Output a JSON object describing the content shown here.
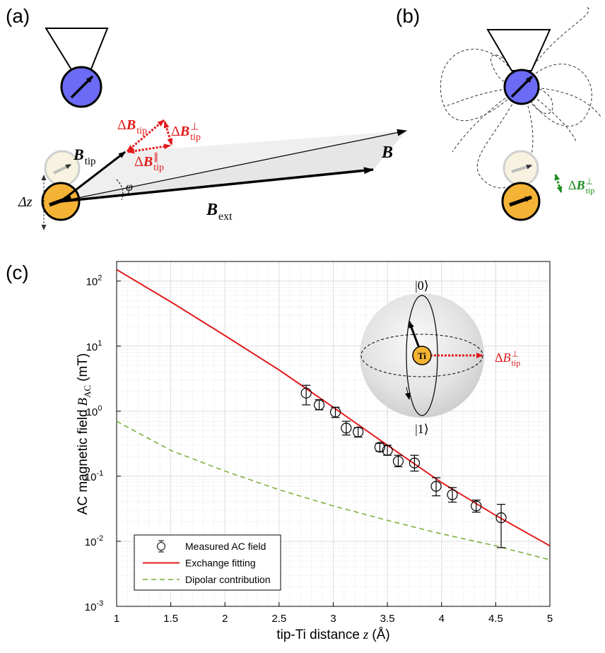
{
  "panel_labels": [
    "(a)",
    "(b)",
    "(c)"
  ],
  "panel_a": {
    "b_tip": {
      "base": "B",
      "sub": "tip"
    },
    "delta_b_tip": {
      "prefix": "Δ",
      "base": "B",
      "sub": "tip"
    },
    "delta_b_perp": {
      "prefix": "Δ",
      "base": "B",
      "sup": "⊥",
      "sub": "tip"
    },
    "delta_b_par": {
      "prefix": "Δ",
      "base": "B",
      "sup": "∥",
      "sub": "tip"
    },
    "phi": "φ",
    "delta_z": "Δz",
    "b_total": "B",
    "b_ext": {
      "base": "B",
      "sub": "ext"
    }
  },
  "panel_b": {
    "delta_b_perp": {
      "prefix": "Δ",
      "base": "B",
      "sup": "⊥",
      "sub": "tip"
    }
  },
  "chart_data": {
    "type": "errorbar-line",
    "xlabel": {
      "text": "tip-Ti distance",
      "symbol": "z",
      "unit": "(Å)"
    },
    "ylabel": {
      "text": "AC magnetic field",
      "symbol": "B",
      "sub": "AC",
      "unit": "(mT)"
    },
    "xlim": [
      1,
      5
    ],
    "xticks": [
      1,
      1.5,
      2,
      2.5,
      3,
      3.5,
      4,
      4.5,
      5
    ],
    "xminorticks": [
      1.1,
      1.2,
      1.3,
      1.4,
      1.6,
      1.7,
      1.8,
      1.9,
      2.1,
      2.2,
      2.3,
      2.4,
      2.6,
      2.7,
      2.8,
      2.9,
      3.1,
      3.2,
      3.3,
      3.4,
      3.6,
      3.7,
      3.8,
      3.9,
      4.1,
      4.2,
      4.3,
      4.4,
      4.6,
      4.7,
      4.8,
      4.9
    ],
    "yscale": "log",
    "ylim": [
      0.001,
      200
    ],
    "yticks": [
      {
        "value": 0.001,
        "label": "10",
        "exponent": "-3"
      },
      {
        "value": 0.01,
        "label": "10",
        "exponent": "-2"
      },
      {
        "value": 0.1,
        "label": "10",
        "exponent": "-1"
      },
      {
        "value": 1,
        "label": "10",
        "exponent": "0"
      },
      {
        "value": 10,
        "label": "10",
        "exponent": "1"
      },
      {
        "value": 100,
        "label": "10",
        "exponent": "2"
      }
    ],
    "yminorticks": [
      0.002,
      0.003,
      0.004,
      0.005,
      0.006,
      0.007,
      0.008,
      0.009,
      0.02,
      0.03,
      0.04,
      0.05,
      0.06,
      0.07,
      0.08,
      0.09,
      0.2,
      0.3,
      0.4,
      0.5,
      0.6,
      0.7,
      0.8,
      0.9,
      2,
      3,
      4,
      5,
      6,
      7,
      8,
      9,
      20,
      30,
      40,
      50,
      60,
      70,
      80,
      90
    ],
    "grid": true,
    "legend": "lower left",
    "series": [
      {
        "name": "Measured AC field",
        "kind": "errorbar",
        "color": "#000000",
        "x": [
          2.75,
          2.87,
          3.02,
          3.12,
          3.23,
          3.43,
          3.5,
          3.6,
          3.75,
          3.95,
          4.1,
          4.32,
          4.55
        ],
        "values": [
          1.9,
          1.25,
          0.97,
          0.55,
          0.48,
          0.28,
          0.25,
          0.17,
          0.16,
          0.07,
          0.052,
          0.035,
          0.023
        ],
        "ylow": [
          1.25,
          1.05,
          0.8,
          0.43,
          0.4,
          0.24,
          0.21,
          0.14,
          0.12,
          0.05,
          0.04,
          0.028,
          0.008
        ],
        "yhigh": [
          2.5,
          1.5,
          1.15,
          0.7,
          0.56,
          0.32,
          0.3,
          0.21,
          0.21,
          0.095,
          0.067,
          0.043,
          0.037
        ]
      },
      {
        "name": "Exchange fitting",
        "kind": "line",
        "color": "#e31a1c",
        "x": [
          1,
          1.5,
          2,
          2.5,
          3,
          3.5,
          4,
          4.5,
          5
        ],
        "values": [
          150,
          48,
          14.5,
          4.3,
          1.15,
          0.3,
          0.08,
          0.025,
          0.0085
        ]
      },
      {
        "name": "Dipolar contribution",
        "kind": "dashed",
        "color": "#77ac30",
        "x": [
          1,
          1.5,
          2,
          2.5,
          3,
          3.5,
          4,
          4.5,
          5
        ],
        "values": [
          0.7,
          0.25,
          0.12,
          0.062,
          0.035,
          0.021,
          0.013,
          0.0085,
          0.0052
        ]
      }
    ],
    "inset": {
      "state0": "|0⟩",
      "state1": "|1⟩",
      "atom": "Ti",
      "field": {
        "prefix": "Δ",
        "base": "B",
        "sup": "⊥",
        "sub": "tip"
      }
    }
  }
}
